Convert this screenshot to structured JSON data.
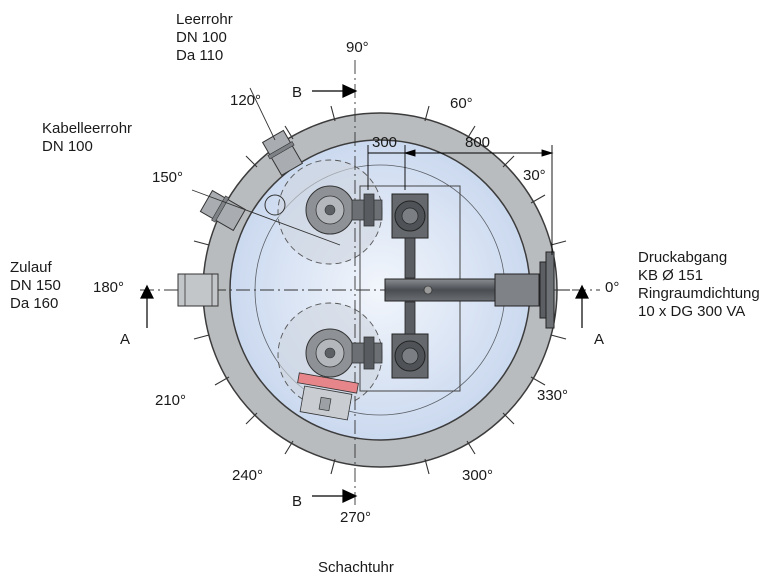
{
  "angles": {
    "a0": "0°",
    "a30": "30°",
    "a60": "60°",
    "a90": "90°",
    "a120": "120°",
    "a150": "150°",
    "a180": "180°",
    "a210": "210°",
    "a240": "240°",
    "a270": "270°",
    "a300": "300°",
    "a330": "330°"
  },
  "section_marks": {
    "a_left": "A",
    "a_right": "A",
    "b_top": "B",
    "b_bottom": "B"
  },
  "dimensions": {
    "d300": "300",
    "d800": "800"
  },
  "labels": {
    "leerrohr": [
      "Leerrohr",
      "DN 100",
      "Da 110"
    ],
    "kabelleerrohr": [
      "Kabelleerrohr",
      "DN 100"
    ],
    "zulauf": [
      "Zulauf",
      "DN 150",
      "Da 160"
    ],
    "druckabgang": [
      "Druckabgang",
      "KB Ø 151",
      "Ringraumdichtung",
      "10 x DG 300 VA"
    ],
    "schachtuhr": "Schachtuhr"
  },
  "colors": {
    "ring": "#b9bcbe",
    "ring_stroke": "#3c3c3c",
    "interior": "#d6e2f3",
    "interior_center": "#edf2fa",
    "pump_circle": "#c9d1dc",
    "valve": "#6a6d72",
    "pipe": "#54585d",
    "hatch_red": "#e7868a"
  }
}
